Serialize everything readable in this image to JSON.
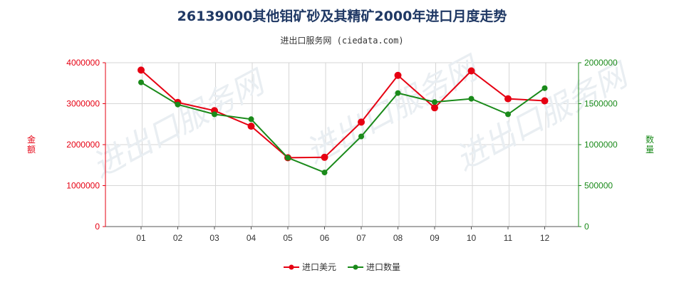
{
  "title": "26139000其他钼矿砂及其精矿2000年进口月度走势",
  "subtitle": "进出口服务网 (ciedata.com)",
  "watermark": "进出口服务网",
  "chart_data": {
    "type": "line",
    "categories": [
      "01",
      "02",
      "03",
      "04",
      "05",
      "06",
      "07",
      "08",
      "09",
      "10",
      "11",
      "12"
    ],
    "ylabel_left": "金额",
    "ylabel_right": "数量",
    "ylim_left": [
      0,
      4000000
    ],
    "ylim_right": [
      0,
      2000000
    ],
    "yticks_left": [
      "0",
      "1000000",
      "2000000",
      "3000000",
      "4000000"
    ],
    "yticks_right": [
      "0",
      "500000",
      "1000000",
      "1500000",
      "2000000"
    ],
    "grid": true,
    "legend_position": "bottom",
    "series": [
      {
        "name": "进口美元",
        "axis": "left",
        "color": "#e60012",
        "values": [
          3820000,
          3030000,
          2830000,
          2450000,
          1680000,
          1690000,
          2550000,
          3690000,
          2900000,
          3800000,
          3120000,
          3070000
        ]
      },
      {
        "name": "进口数量",
        "axis": "right",
        "color": "#1a8a1a",
        "values": [
          1760000,
          1490000,
          1370000,
          1310000,
          840000,
          660000,
          1100000,
          1630000,
          1520000,
          1560000,
          1370000,
          1690000
        ]
      }
    ]
  }
}
